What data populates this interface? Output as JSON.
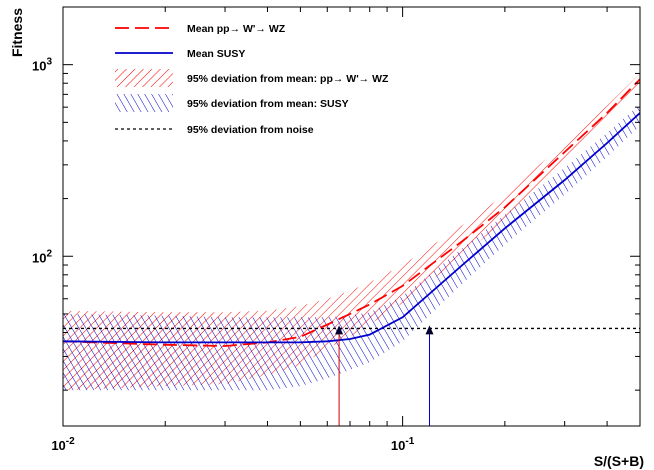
{
  "chart_data": {
    "type": "line",
    "xlabel": "S/(S+B)",
    "ylabel": "Fitness",
    "x_scale": "log",
    "y_scale": "log",
    "xlim": [
      0.01,
      0.5
    ],
    "ylim": [
      13,
      2000
    ],
    "x_ticks": [
      {
        "value": 0.01,
        "base": "10",
        "exp": "-2"
      },
      {
        "value": 0.1,
        "base": "10",
        "exp": "-1"
      }
    ],
    "y_ticks": [
      {
        "value": 100,
        "base": "10",
        "exp": "2"
      },
      {
        "value": 1000,
        "base": "10",
        "exp": "3"
      }
    ],
    "grid": false,
    "legend_position": "top-left",
    "series": [
      {
        "name": "Mean pp→ W'→ WZ",
        "color": "#ff0000",
        "style": "long-dash",
        "x": [
          0.01,
          0.02,
          0.03,
          0.04,
          0.05,
          0.06,
          0.07,
          0.08,
          0.1,
          0.15,
          0.2,
          0.3,
          0.4,
          0.5
        ],
        "y": [
          36,
          34.5,
          34,
          35.5,
          38,
          44,
          50,
          56,
          70,
          120,
          180,
          350,
          560,
          840
        ]
      },
      {
        "name": "Mean SUSY",
        "color": "#0000cc",
        "style": "solid",
        "x": [
          0.01,
          0.02,
          0.03,
          0.04,
          0.05,
          0.06,
          0.07,
          0.08,
          0.1,
          0.15,
          0.2,
          0.3,
          0.4,
          0.5
        ],
        "y": [
          36,
          35.5,
          35.5,
          35.5,
          35.5,
          36,
          37,
          39,
          48,
          90,
          140,
          250,
          390,
          560
        ]
      }
    ],
    "bands": [
      {
        "name": "95% deviation from mean: pp→ W'→ WZ",
        "color": "#ff0000",
        "hatch": "diag-down",
        "x": [
          0.01,
          0.02,
          0.03,
          0.04,
          0.05,
          0.06,
          0.07,
          0.08,
          0.1,
          0.15,
          0.2,
          0.3,
          0.4,
          0.5
        ],
        "upper": [
          52,
          51,
          51,
          52,
          55,
          60,
          66,
          73,
          90,
          145,
          210,
          390,
          610,
          900
        ],
        "lower": [
          20,
          21,
          21.5,
          24,
          27,
          33,
          38,
          44,
          57,
          100,
          155,
          315,
          510,
          780
        ]
      },
      {
        "name": "95% deviation from mean: SUSY",
        "color": "#0000cc",
        "hatch": "diag-up",
        "x": [
          0.01,
          0.02,
          0.03,
          0.04,
          0.05,
          0.06,
          0.07,
          0.08,
          0.1,
          0.15,
          0.2,
          0.3,
          0.4,
          0.5
        ],
        "upper": [
          50,
          49,
          48,
          48,
          48,
          48,
          49,
          51,
          62,
          110,
          165,
          290,
          440,
          620
        ],
        "lower": [
          20,
          20,
          20,
          20,
          21,
          23,
          25.5,
          28,
          36,
          72,
          115,
          210,
          330,
          480
        ]
      }
    ],
    "threshold": {
      "name": "95% deviation from noise",
      "color": "#000000",
      "style": "dotted",
      "y": 42
    },
    "markers": [
      {
        "x": 0.065,
        "color": "#cc0000",
        "y": 42
      },
      {
        "x": 0.12,
        "color": "#0000cc",
        "y": 42
      }
    ]
  }
}
